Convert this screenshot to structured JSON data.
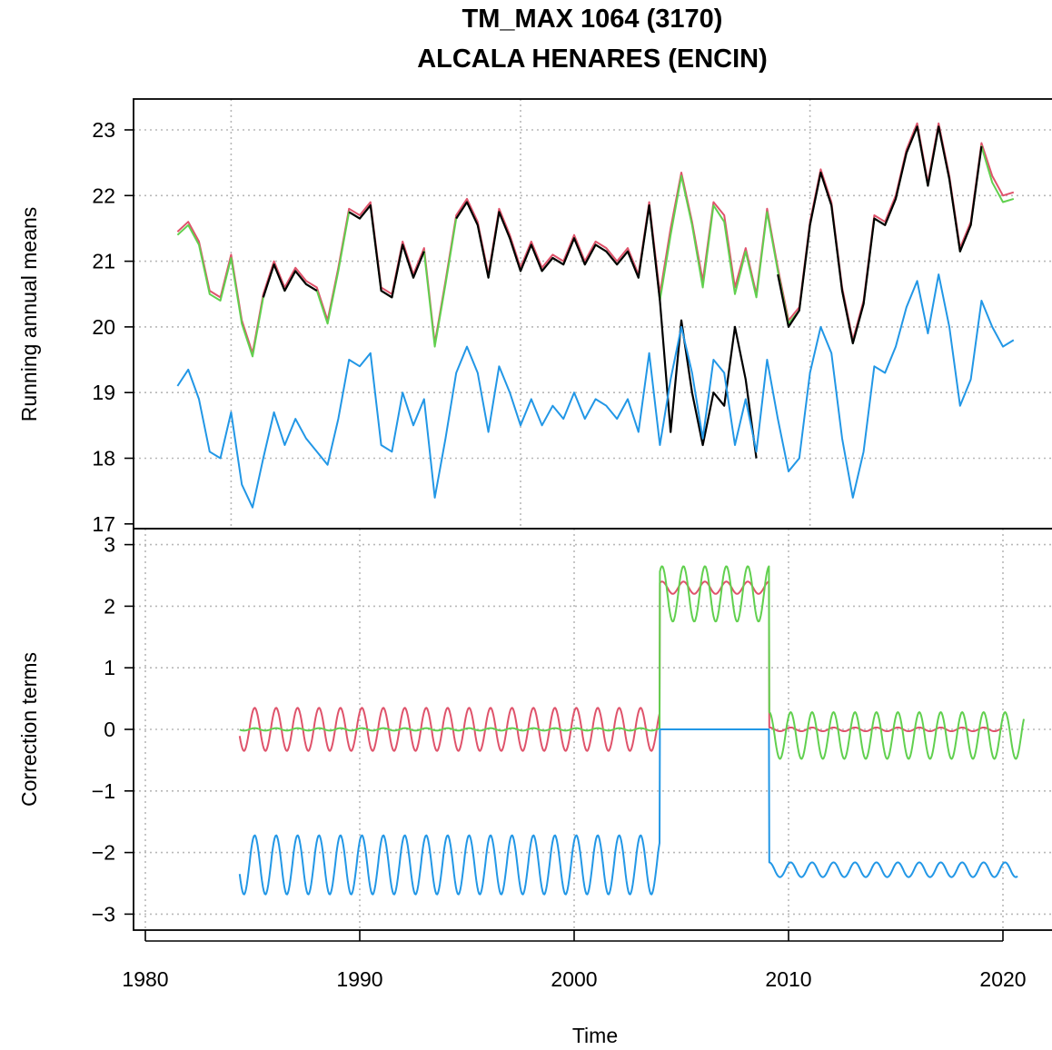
{
  "title_line1": "TM_MAX   1064 (3170)",
  "title_line2": "ALCALA HENARES (ENCIN)",
  "chart_data": [
    {
      "type": "line",
      "panel": "top",
      "ylabel": "Running annual means",
      "ylim": [
        17,
        23.5
      ],
      "y_ticks": [
        "17",
        "18",
        "19",
        "20",
        "21",
        "22",
        "23"
      ],
      "xlim": [
        1980,
        2022
      ],
      "grid": true,
      "series": [
        {
          "color": "#df536b",
          "x": [
            1981.5,
            1982.0,
            1982.5,
            1983.0,
            1983.5,
            1984.0,
            1984.5,
            1985.0,
            1985.5,
            1986.0,
            1986.5,
            1987.0,
            1987.5,
            1988.0,
            1988.5,
            1989.0,
            1989.5,
            1990.0,
            1990.5,
            1991.0,
            1991.5,
            1992.0,
            1992.5,
            1993.0,
            1993.5,
            1994.0,
            1994.5,
            1995.0,
            1995.5,
            1996.0,
            1996.5,
            1997.0,
            1997.5,
            1998.0,
            1998.5,
            1999.0,
            1999.5,
            2000.0,
            2000.5,
            2001.0,
            2001.5,
            2002.0,
            2002.5,
            2003.0,
            2003.5,
            2004.0,
            2004.5,
            2005.0,
            2005.5,
            2006.0,
            2006.5,
            2007.0,
            2007.5,
            2008.0,
            2008.5,
            2009.0,
            2009.5,
            2010.0,
            2010.5,
            2011.0,
            2011.5,
            2012.0,
            2012.5,
            2013.0,
            2013.5,
            2014.0,
            2014.5,
            2015.0,
            2015.5,
            2016.0,
            2016.5,
            2017.0,
            2017.5,
            2018.0,
            2018.5,
            2019.0,
            2019.5,
            2020.0,
            2020.5
          ],
          "values": [
            21.45,
            21.6,
            21.3,
            20.55,
            20.45,
            21.1,
            20.1,
            19.6,
            20.5,
            21.0,
            20.6,
            20.9,
            20.7,
            20.6,
            20.1,
            20.9,
            21.8,
            21.7,
            21.9,
            20.6,
            20.5,
            21.3,
            20.8,
            21.2,
            19.75,
            20.7,
            21.7,
            21.95,
            21.6,
            20.8,
            21.8,
            21.4,
            20.9,
            21.3,
            20.9,
            21.1,
            21.0,
            21.4,
            21.0,
            21.3,
            21.2,
            21.0,
            21.2,
            20.8,
            21.9,
            20.5,
            21.5,
            22.35,
            21.6,
            20.7,
            21.9,
            21.7,
            20.6,
            21.2,
            20.5,
            21.8,
            20.9,
            20.1,
            20.3,
            21.6,
            22.4,
            21.9,
            20.6,
            19.8,
            20.4,
            21.7,
            21.6,
            22.0,
            22.7,
            23.1,
            22.2,
            23.1,
            22.3,
            21.2,
            21.6,
            22.8,
            22.3,
            22.0,
            22.05
          ]
        },
        {
          "color": "#61d04f",
          "x": [
            1981.5,
            1982.0,
            1982.5,
            1983.0,
            1983.5,
            1984.0,
            1984.5,
            1985.0,
            1985.5,
            1986.0,
            1986.5,
            1987.0,
            1987.5,
            1988.0,
            1988.5,
            1989.0,
            1989.5,
            1990.0,
            1990.5,
            1991.0,
            1991.5,
            1992.0,
            1992.5,
            1993.0,
            1993.5,
            1994.0,
            1994.5,
            1995.0,
            1995.5,
            1996.0,
            1996.5,
            1997.0,
            1997.5,
            1998.0,
            1998.5,
            1999.0,
            1999.5,
            2000.0,
            2000.5,
            2001.0,
            2001.5,
            2002.0,
            2002.5,
            2003.0,
            2003.5,
            2004.0,
            2004.5,
            2005.0,
            2005.5,
            2006.0,
            2006.5,
            2007.0,
            2007.5,
            2008.0,
            2008.5,
            2009.0,
            2009.5,
            2010.0,
            2010.5,
            2011.0,
            2011.5,
            2012.0,
            2012.5,
            2013.0,
            2013.5,
            2014.0,
            2014.5,
            2015.0,
            2015.5,
            2016.0,
            2016.5,
            2017.0,
            2017.5,
            2018.0,
            2018.5,
            2019.0,
            2019.5,
            2020.0,
            2020.5
          ],
          "values": [
            21.4,
            21.55,
            21.25,
            20.5,
            20.4,
            21.05,
            20.05,
            19.55,
            20.45,
            20.95,
            20.55,
            20.85,
            20.65,
            20.55,
            20.05,
            20.85,
            21.75,
            21.65,
            21.85,
            20.55,
            20.45,
            21.25,
            20.75,
            21.15,
            19.7,
            20.65,
            21.65,
            21.9,
            21.55,
            20.75,
            21.75,
            21.35,
            20.85,
            21.25,
            20.85,
            21.05,
            20.95,
            21.35,
            20.95,
            21.25,
            21.15,
            20.95,
            21.15,
            20.75,
            21.85,
            20.4,
            21.4,
            22.3,
            21.55,
            20.6,
            21.85,
            21.6,
            20.5,
            21.15,
            20.45,
            21.75,
            20.85,
            20.05,
            20.25,
            21.55,
            22.35,
            21.85,
            20.55,
            19.75,
            20.35,
            21.65,
            21.55,
            21.95,
            22.65,
            23.05,
            22.15,
            23.05,
            22.25,
            21.15,
            21.55,
            22.75,
            22.2,
            21.9,
            21.95
          ]
        },
        {
          "color": "#000000",
          "x": [
            1981.5,
            1982.0,
            1982.5,
            1983.0,
            1983.5,
            1984.0,
            1984.5,
            1985.0,
            1985.5,
            1986.0,
            1986.5,
            1987.0,
            1987.5,
            1988.0,
            1988.5,
            1989.0,
            1989.5,
            1990.0,
            1990.5,
            1991.0,
            1991.5,
            1992.0,
            1992.5,
            1993.0,
            1993.5,
            1994.0,
            1994.5,
            1995.0,
            1995.5,
            1996.0,
            1996.5,
            1997.0,
            1997.5,
            1998.0,
            1998.5,
            1999.0,
            1999.5,
            2000.0,
            2000.5,
            2001.0,
            2001.5,
            2002.0,
            2002.5,
            2003.0,
            2003.5,
            2004.0,
            2004.5,
            2005.0,
            2005.5,
            2006.0,
            2006.5,
            2007.0,
            2007.5,
            2008.0,
            2008.5,
            2009.0,
            2009.5,
            2010.0,
            2010.5,
            2011.0,
            2011.5,
            2012.0,
            2012.5,
            2013.0,
            2013.5,
            2014.0,
            2014.5,
            2015.0,
            2015.5,
            2016.0,
            2016.5,
            2017.0,
            2017.5,
            2018.0,
            2018.5,
            2019.0,
            2019.5,
            2020.0,
            2020.5
          ],
          "values": [
            null,
            null,
            null,
            null,
            null,
            null,
            null,
            null,
            20.45,
            20.95,
            20.55,
            20.85,
            20.65,
            20.55,
            null,
            null,
            21.75,
            21.65,
            21.85,
            20.55,
            20.45,
            21.25,
            20.75,
            21.15,
            null,
            null,
            21.65,
            21.9,
            21.55,
            20.75,
            21.75,
            21.35,
            20.85,
            21.25,
            20.85,
            21.05,
            20.95,
            21.35,
            20.95,
            21.25,
            21.15,
            20.95,
            21.15,
            20.75,
            21.85,
            20.4,
            18.4,
            20.1,
            19.0,
            18.2,
            19.0,
            18.8,
            20.0,
            19.2,
            18.0,
            null,
            20.8,
            20.0,
            20.25,
            21.55,
            22.35,
            21.85,
            20.55,
            19.75,
            20.35,
            21.65,
            21.55,
            21.95,
            22.65,
            23.05,
            22.15,
            23.05,
            22.25,
            21.15,
            21.55,
            22.75,
            null,
            null,
            null
          ]
        },
        {
          "color": "#2297e6",
          "x": [
            1981.5,
            1982.0,
            1982.5,
            1983.0,
            1983.5,
            1984.0,
            1984.5,
            1985.0,
            1985.5,
            1986.0,
            1986.5,
            1987.0,
            1987.5,
            1988.0,
            1988.5,
            1989.0,
            1989.5,
            1990.0,
            1990.5,
            1991.0,
            1991.5,
            1992.0,
            1992.5,
            1993.0,
            1993.5,
            1994.0,
            1994.5,
            1995.0,
            1995.5,
            1996.0,
            1996.5,
            1997.0,
            1997.5,
            1998.0,
            1998.5,
            1999.0,
            1999.5,
            2000.0,
            2000.5,
            2001.0,
            2001.5,
            2002.0,
            2002.5,
            2003.0,
            2003.5,
            2004.0,
            2004.5,
            2005.0,
            2005.5,
            2006.0,
            2006.5,
            2007.0,
            2007.5,
            2008.0,
            2008.5,
            2009.0,
            2009.5,
            2010.0,
            2010.5,
            2011.0,
            2011.5,
            2012.0,
            2012.5,
            2013.0,
            2013.5,
            2014.0,
            2014.5,
            2015.0,
            2015.5,
            2016.0,
            2016.5,
            2017.0,
            2017.5,
            2018.0,
            2018.5,
            2019.0,
            2019.5,
            2020.0,
            2020.5
          ],
          "values": [
            19.1,
            19.35,
            18.9,
            18.1,
            18.0,
            18.7,
            17.6,
            17.25,
            18.0,
            18.7,
            18.2,
            18.6,
            18.3,
            18.1,
            17.9,
            18.6,
            19.5,
            19.4,
            19.6,
            18.2,
            18.1,
            19.0,
            18.5,
            18.9,
            17.4,
            18.3,
            19.3,
            19.7,
            19.3,
            18.4,
            19.4,
            19.0,
            18.5,
            18.9,
            18.5,
            18.8,
            18.6,
            19.0,
            18.6,
            18.9,
            18.8,
            18.6,
            18.9,
            18.4,
            19.6,
            18.2,
            19.2,
            20.0,
            19.3,
            18.3,
            19.5,
            19.3,
            18.2,
            18.9,
            18.1,
            19.5,
            18.6,
            17.8,
            18.0,
            19.3,
            20.0,
            19.6,
            18.3,
            17.4,
            18.1,
            19.4,
            19.3,
            19.7,
            20.3,
            20.7,
            19.9,
            20.8,
            20.0,
            18.8,
            19.2,
            20.4,
            20.0,
            19.7,
            19.8
          ]
        }
      ]
    },
    {
      "type": "line",
      "panel": "bottom",
      "ylabel": "Correction terms",
      "xlabel": "Time",
      "ylim": [
        -3.15,
        3.1
      ],
      "y_ticks": [
        "−3",
        "−2",
        "−1",
        "0",
        "1",
        "2",
        "3"
      ],
      "xlim": [
        1980,
        2022
      ],
      "x_ticks": [
        "1980",
        "1990",
        "2000",
        "2010",
        "2020"
      ],
      "grid": true,
      "series": [
        {
          "color": "#df536b",
          "segments": [
            {
              "x0": 1984.4,
              "x1": 2004.0,
              "base": 0.0,
              "amp": 0.35
            },
            {
              "x0": 2004.0,
              "x1": 2009.1,
              "base": 2.3,
              "amp": 0.1
            },
            {
              "x0": 2009.1,
              "x1": 2020.0,
              "base": 0.0,
              "amp": 0.03
            }
          ]
        },
        {
          "color": "#61d04f",
          "segments": [
            {
              "x0": 1984.4,
              "x1": 2004.0,
              "base": 0.0,
              "amp": 0.02
            },
            {
              "x0": 2004.0,
              "x1": 2009.1,
              "base": 2.2,
              "amp": 0.45
            },
            {
              "x0": 2009.1,
              "x1": 2021.0,
              "base": -0.1,
              "amp": 0.38
            }
          ]
        },
        {
          "color": "#2297e6",
          "segments": [
            {
              "x0": 1984.4,
              "x1": 2004.0,
              "base": -2.2,
              "amp": 0.48
            },
            {
              "x0": 2004.0,
              "x1": 2009.1,
              "base": 0.0,
              "amp": 0.0
            },
            {
              "x0": 2009.1,
              "x1": 2020.7,
              "base": -2.28,
              "amp": 0.12
            }
          ]
        }
      ]
    }
  ]
}
